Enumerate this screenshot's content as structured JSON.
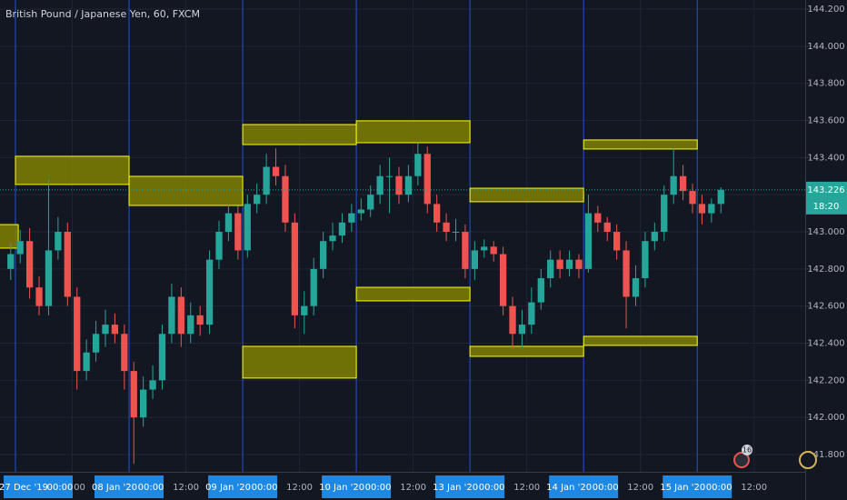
{
  "chart_data": {
    "type": "candlestick",
    "title": "British Pound / Japanese Yen, 60, FXCM",
    "up_color": "#26a69a",
    "down_color": "#ef5350",
    "open": [
      142.8,
      142.88,
      142.95,
      142.7,
      142.6,
      142.9,
      143.0,
      142.65,
      142.25,
      142.35,
      142.45,
      142.5,
      142.45,
      142.25,
      142.0,
      142.15,
      142.2,
      142.45,
      142.65,
      142.45,
      142.55,
      142.5,
      142.85,
      143.0,
      143.1,
      142.9,
      143.15,
      143.2,
      143.35,
      143.3,
      143.05,
      142.55,
      142.6,
      142.8,
      142.95,
      142.98,
      143.05,
      143.1,
      143.12,
      143.2,
      143.3,
      143.3,
      143.2,
      143.3,
      143.42,
      143.15,
      143.05,
      143.0,
      143.0,
      142.8,
      142.9,
      142.92,
      142.88,
      142.6,
      142.45,
      142.5,
      142.62,
      142.75,
      142.85,
      142.8,
      142.85,
      142.8,
      143.1,
      143.05,
      143.0,
      142.9,
      142.65,
      142.75,
      142.95,
      143.0,
      143.2,
      143.3,
      143.22,
      143.15,
      143.1,
      143.15
    ],
    "high": [
      142.94,
      143.01,
      143.02,
      142.76,
      143.28,
      143.08,
      143.05,
      142.7,
      142.42,
      142.52,
      142.58,
      142.56,
      142.5,
      142.3,
      142.22,
      142.28,
      142.5,
      142.72,
      142.7,
      142.62,
      142.6,
      142.9,
      143.06,
      143.15,
      143.14,
      143.2,
      143.26,
      143.42,
      143.45,
      143.36,
      143.1,
      142.68,
      142.86,
      143.0,
      143.05,
      143.1,
      143.15,
      143.18,
      143.25,
      143.36,
      143.4,
      143.35,
      143.36,
      143.48,
      143.46,
      143.2,
      143.1,
      143.07,
      143.04,
      142.95,
      142.96,
      142.95,
      142.92,
      142.65,
      142.58,
      142.7,
      142.8,
      142.9,
      142.9,
      142.9,
      142.88,
      143.2,
      143.14,
      143.08,
      143.04,
      142.95,
      142.82,
      143.0,
      143.05,
      143.25,
      143.45,
      143.36,
      143.26,
      143.2,
      143.18,
      143.24
    ],
    "low": [
      142.74,
      142.83,
      142.64,
      142.55,
      142.55,
      142.85,
      142.6,
      142.15,
      142.2,
      142.3,
      142.38,
      142.4,
      142.15,
      141.75,
      141.95,
      142.1,
      142.15,
      142.4,
      142.38,
      142.4,
      142.44,
      142.45,
      142.8,
      142.95,
      142.85,
      142.86,
      143.1,
      143.15,
      143.25,
      143.0,
      142.48,
      142.45,
      142.55,
      142.75,
      142.9,
      142.94,
      143.0,
      143.06,
      143.08,
      143.15,
      143.1,
      143.15,
      143.16,
      143.25,
      143.1,
      143.0,
      142.95,
      142.95,
      142.75,
      142.74,
      142.86,
      142.84,
      142.55,
      142.37,
      142.38,
      142.45,
      142.58,
      142.7,
      142.75,
      142.76,
      142.75,
      142.78,
      143.0,
      142.95,
      142.85,
      142.48,
      142.6,
      142.7,
      142.9,
      142.95,
      143.15,
      143.17,
      143.1,
      143.04,
      143.05,
      143.1
    ],
    "close": [
      142.88,
      142.95,
      142.7,
      142.6,
      142.9,
      143.0,
      142.65,
      142.25,
      142.35,
      142.45,
      142.5,
      142.45,
      142.25,
      142.0,
      142.15,
      142.2,
      142.45,
      142.65,
      142.45,
      142.55,
      142.5,
      142.85,
      143.0,
      143.1,
      142.9,
      143.15,
      143.2,
      143.35,
      143.3,
      143.05,
      142.55,
      142.6,
      142.8,
      142.95,
      142.98,
      143.05,
      143.1,
      143.12,
      143.2,
      143.3,
      143.3,
      143.2,
      143.3,
      143.42,
      143.15,
      143.05,
      143.0,
      143.0,
      142.8,
      142.9,
      142.92,
      142.88,
      142.6,
      142.45,
      142.5,
      142.62,
      142.75,
      142.85,
      142.8,
      142.85,
      142.8,
      143.1,
      143.05,
      143.0,
      142.9,
      142.65,
      142.75,
      142.95,
      143.0,
      143.2,
      143.3,
      143.22,
      143.15,
      143.1,
      143.15,
      143.226
    ],
    "xlim": [
      -0.63,
      84.4
    ],
    "ylim": [
      141.8,
      144.2
    ],
    "yticks": [
      {
        "value": 141.8,
        "label": "141.800"
      },
      {
        "value": 142.0,
        "label": "142.000"
      },
      {
        "value": 142.2,
        "label": "142.200"
      },
      {
        "value": 142.4,
        "label": "142.400"
      },
      {
        "value": 142.6,
        "label": "142.600"
      },
      {
        "value": 142.8,
        "label": "142.800"
      },
      {
        "value": 143.0,
        "label": "143.000"
      },
      {
        "value": 143.2,
        "label": "143.200"
      },
      {
        "value": 143.4,
        "label": "143.400"
      },
      {
        "value": 143.6,
        "label": "143.600"
      },
      {
        "value": 143.8,
        "label": "143.800"
      },
      {
        "value": 144.0,
        "label": "144.000"
      },
      {
        "value": 144.2,
        "label": "144.200"
      }
    ],
    "xticks": [
      {
        "value": 7,
        "label": "12:00"
      },
      {
        "value": 19,
        "label": "12:00"
      },
      {
        "value": 31,
        "label": "12:00"
      },
      {
        "value": 43,
        "label": "12:00"
      },
      {
        "value": 55,
        "label": "12:00"
      },
      {
        "value": 67,
        "label": "12:00"
      },
      {
        "value": 79,
        "label": "12:00"
      }
    ],
    "date_markers": [
      {
        "value": 1,
        "date": "27 Dec '19",
        "time": "00:00"
      },
      {
        "value": 13,
        "date": "08 Jan '20",
        "time": "00:00"
      },
      {
        "value": 25,
        "date": "09 Jan '20",
        "time": "00:00"
      },
      {
        "value": 37,
        "date": "10 Jan '20",
        "time": "00:00"
      },
      {
        "value": 49,
        "date": "13 Jan '20",
        "time": "00:00"
      },
      {
        "value": 61,
        "date": "14 Jan '20",
        "time": "00:00"
      },
      {
        "value": 73,
        "date": "15 Jan '20",
        "time": "00:00"
      }
    ],
    "zones": [
      {
        "x": [
          -1,
          1.3
        ],
        "y": [
          142.912,
          143.039
        ]
      },
      {
        "x": [
          1,
          13
        ],
        "y": [
          143.255,
          143.407
        ]
      },
      {
        "x": [
          13,
          25
        ],
        "y": [
          143.142,
          143.299
        ]
      },
      {
        "x": [
          25,
          37
        ],
        "y": [
          143.47,
          143.578
        ]
      },
      {
        "x": [
          37,
          49
        ],
        "y": [
          143.48,
          143.598
        ]
      },
      {
        "x": [
          49,
          61
        ],
        "y": [
          143.162,
          143.235
        ]
      },
      {
        "x": [
          61,
          73
        ],
        "y": [
          143.446,
          143.495
        ]
      },
      {
        "x": [
          37,
          49
        ],
        "y": [
          142.628,
          142.701
        ]
      },
      {
        "x": [
          25,
          37
        ],
        "y": [
          142.212,
          142.383
        ]
      },
      {
        "x": [
          49,
          61
        ],
        "y": [
          142.329,
          142.383
        ]
      },
      {
        "x": [
          61,
          73
        ],
        "y": [
          142.388,
          142.437
        ]
      }
    ],
    "last_price": {
      "value": 143.226,
      "label": "143.226"
    },
    "countdown": "18:20",
    "badge": "16"
  }
}
